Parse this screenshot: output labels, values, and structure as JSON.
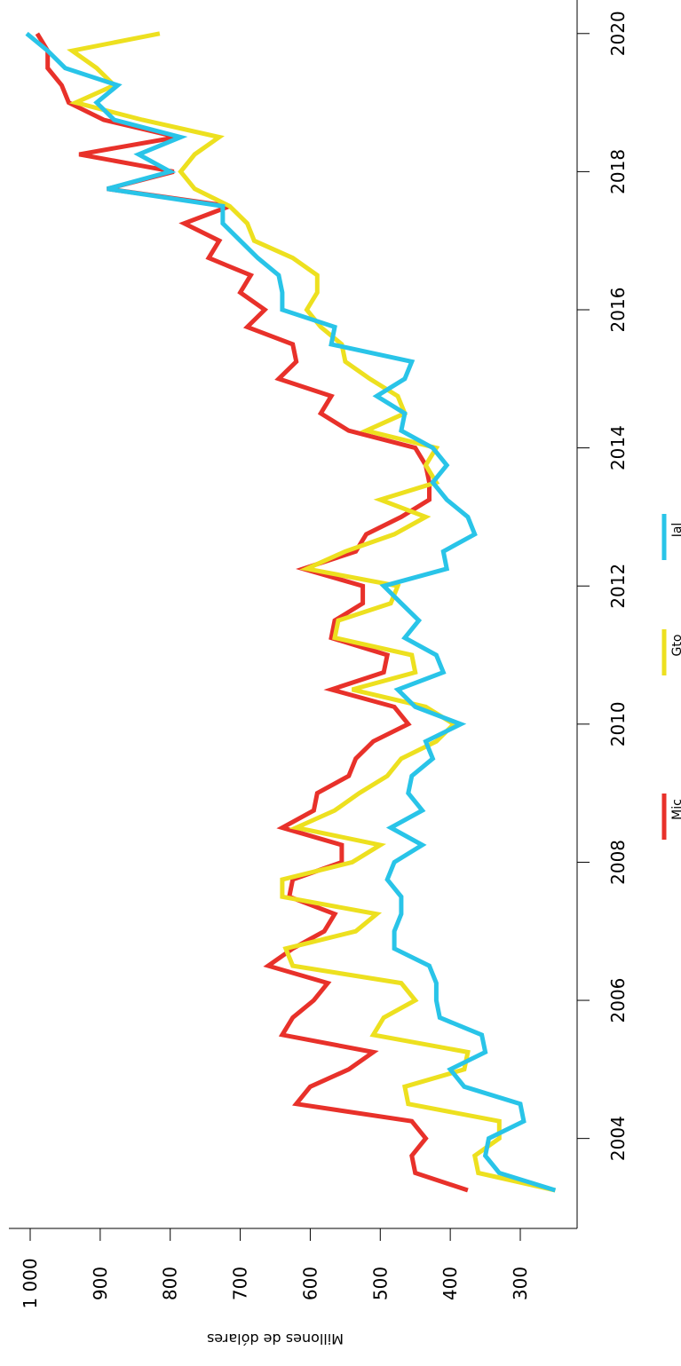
{
  "chart_data": {
    "type": "line",
    "xlabel": "",
    "ylabel": "Millones de dólares",
    "xlim": [
      2002.3,
      2020.3
    ],
    "ylim": [
      210,
      1030
    ],
    "x_ticks": [
      2004,
      2006,
      2008,
      2010,
      2012,
      2014,
      2016,
      2018,
      2020
    ],
    "x_tick_labels": [
      "2004",
      "2006",
      "2008",
      "2010",
      "2012",
      "2014",
      "2016",
      "2018",
      "2020"
    ],
    "y_ticks": [
      300,
      400,
      500,
      600,
      700,
      800,
      900,
      1000
    ],
    "y_tick_labels": [
      "300",
      "400",
      "500",
      "600",
      "700",
      "800",
      "900",
      "1 000"
    ],
    "legend_position": "bottom",
    "grid": false,
    "series": [
      {
        "name": "Mic",
        "color": "#e8312a",
        "x": [
          2003.25,
          2003.5,
          2003.75,
          2004.0,
          2004.25,
          2004.5,
          2004.75,
          2005.0,
          2005.25,
          2005.5,
          2005.75,
          2006.0,
          2006.25,
          2006.5,
          2006.75,
          2007.0,
          2007.25,
          2007.5,
          2007.75,
          2008.0,
          2008.25,
          2008.5,
          2008.75,
          2009.0,
          2009.25,
          2009.5,
          2009.75,
          2010.0,
          2010.25,
          2010.5,
          2010.75,
          2011.0,
          2011.25,
          2011.5,
          2011.75,
          2012.0,
          2012.25,
          2012.5,
          2012.75,
          2013.0,
          2013.25,
          2013.5,
          2013.75,
          2014.0,
          2014.25,
          2014.5,
          2014.75,
          2015.0,
          2015.25,
          2015.5,
          2015.75,
          2016.0,
          2016.25,
          2016.5,
          2016.75,
          2017.0,
          2017.25,
          2017.5,
          2017.75,
          2018.0,
          2018.25,
          2018.5,
          2018.75,
          2019.0,
          2019.25,
          2019.5,
          2019.75,
          2020.0
        ],
        "y": [
          375,
          450,
          455,
          435,
          455,
          620,
          600,
          545,
          510,
          640,
          625,
          595,
          575,
          660,
          625,
          580,
          565,
          630,
          625,
          555,
          555,
          640,
          595,
          590,
          545,
          535,
          510,
          460,
          480,
          570,
          495,
          490,
          570,
          565,
          525,
          525,
          610,
          535,
          520,
          470,
          430,
          430,
          435,
          450,
          545,
          585,
          570,
          645,
          620,
          625,
          690,
          665,
          700,
          685,
          745,
          730,
          780,
          715,
          890,
          795,
          930,
          790,
          895,
          945,
          955,
          975,
          975,
          990
        ]
      },
      {
        "name": "Gto",
        "color": "#ede01f",
        "x": [
          2003.25,
          2003.5,
          2003.75,
          2004.0,
          2004.25,
          2004.5,
          2004.75,
          2005.0,
          2005.25,
          2005.5,
          2005.75,
          2006.0,
          2006.25,
          2006.5,
          2006.75,
          2007.0,
          2007.25,
          2007.5,
          2007.75,
          2008.0,
          2008.25,
          2008.5,
          2008.75,
          2009.0,
          2009.25,
          2009.5,
          2009.75,
          2010.0,
          2010.25,
          2010.5,
          2010.75,
          2011.0,
          2011.25,
          2011.5,
          2011.75,
          2012.0,
          2012.25,
          2012.5,
          2012.75,
          2013.0,
          2013.25,
          2013.5,
          2013.75,
          2014.0,
          2014.25,
          2014.5,
          2014.75,
          2015.0,
          2015.25,
          2015.5,
          2015.75,
          2016.0,
          2016.25,
          2016.5,
          2016.75,
          2017.0,
          2017.25,
          2017.5,
          2017.75,
          2018.0,
          2018.25,
          2018.5,
          2018.75,
          2019.0,
          2019.25,
          2019.5,
          2019.75,
          2020.0
        ],
        "y": [
          250,
          360,
          365,
          330,
          330,
          460,
          465,
          380,
          375,
          510,
          495,
          450,
          470,
          625,
          635,
          535,
          505,
          640,
          640,
          540,
          500,
          620,
          565,
          530,
          490,
          470,
          420,
          395,
          435,
          540,
          450,
          455,
          565,
          560,
          485,
          475,
          605,
          550,
          480,
          435,
          500,
          420,
          435,
          420,
          520,
          465,
          475,
          515,
          550,
          555,
          585,
          605,
          590,
          590,
          625,
          680,
          690,
          715,
          765,
          785,
          765,
          730,
          840,
          935,
          880,
          905,
          940,
          815
        ]
      },
      {
        "name": "Jal",
        "color": "#29c4e8",
        "x": [
          2003.25,
          2003.5,
          2003.75,
          2004.0,
          2004.25,
          2004.5,
          2004.75,
          2005.0,
          2005.25,
          2005.5,
          2005.75,
          2006.0,
          2006.25,
          2006.5,
          2006.75,
          2007.0,
          2007.25,
          2007.5,
          2007.75,
          2008.0,
          2008.25,
          2008.5,
          2008.75,
          2009.0,
          2009.25,
          2009.5,
          2009.75,
          2010.0,
          2010.25,
          2010.5,
          2010.75,
          2011.0,
          2011.25,
          2011.5,
          2011.75,
          2012.0,
          2012.25,
          2012.5,
          2012.75,
          2013.0,
          2013.25,
          2013.5,
          2013.75,
          2014.0,
          2014.25,
          2014.5,
          2014.75,
          2015.0,
          2015.25,
          2015.5,
          2015.75,
          2016.0,
          2016.25,
          2016.5,
          2016.75,
          2017.0,
          2017.25,
          2017.5,
          2017.75,
          2018.0,
          2018.25,
          2018.5,
          2018.75,
          2019.0,
          2019.25,
          2019.5,
          2019.75,
          2020.0
        ],
        "y": [
          250,
          330,
          350,
          345,
          295,
          300,
          380,
          400,
          350,
          355,
          415,
          420,
          420,
          430,
          480,
          480,
          470,
          470,
          490,
          480,
          440,
          485,
          440,
          460,
          455,
          425,
          435,
          385,
          450,
          475,
          410,
          420,
          465,
          445,
          470,
          495,
          405,
          410,
          365,
          375,
          405,
          425,
          405,
          425,
          470,
          465,
          505,
          465,
          455,
          570,
          565,
          640,
          640,
          645,
          675,
          700,
          725,
          725,
          890,
          800,
          845,
          785,
          880,
          905,
          875,
          950,
          975,
          1005
        ]
      }
    ]
  }
}
